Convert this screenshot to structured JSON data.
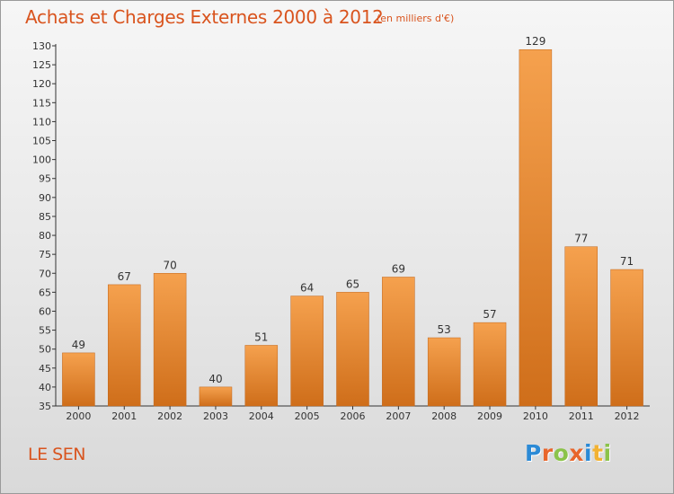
{
  "header": {
    "title": "Achats et Charges Externes 2000 à 2012",
    "subtitle": "(en milliers d'€)"
  },
  "footer": {
    "place": "LE SEN",
    "brand": "Proxiti",
    "brand_colors": [
      "#2b8ad6",
      "#e8662c",
      "#8bc34a",
      "#e8662c",
      "#2b8ad6",
      "#f2b233",
      "#8bc34a"
    ]
  },
  "colors": {
    "text_accent": "#d9541e",
    "bar_top": "#f5a14e",
    "bar_bottom": "#cf6e1a",
    "bar_stroke": "#c0651a",
    "axis": "#333333",
    "grid": "#d0d0d0"
  },
  "chart_data": {
    "type": "bar",
    "categories": [
      "2000",
      "2001",
      "2002",
      "2003",
      "2004",
      "2005",
      "2006",
      "2007",
      "2008",
      "2009",
      "2010",
      "2011",
      "2012"
    ],
    "values": [
      49,
      67,
      70,
      40,
      51,
      64,
      65,
      69,
      53,
      57,
      129,
      77,
      71
    ],
    "data_labels": [
      "49",
      "67",
      "70",
      "40",
      "51",
      "64",
      "65",
      "69",
      "53",
      "57",
      "129",
      "77",
      "71"
    ],
    "title": "Achats et Charges Externes 2000 à 2012",
    "subtitle": "(en milliers d'€)",
    "xlabel": "",
    "ylabel": "",
    "ylim": [
      35,
      130
    ],
    "yticks": [
      35,
      40,
      45,
      50,
      55,
      60,
      65,
      70,
      75,
      80,
      85,
      90,
      95,
      100,
      105,
      110,
      115,
      120,
      125,
      130
    ],
    "grid": false,
    "legend": "none"
  }
}
